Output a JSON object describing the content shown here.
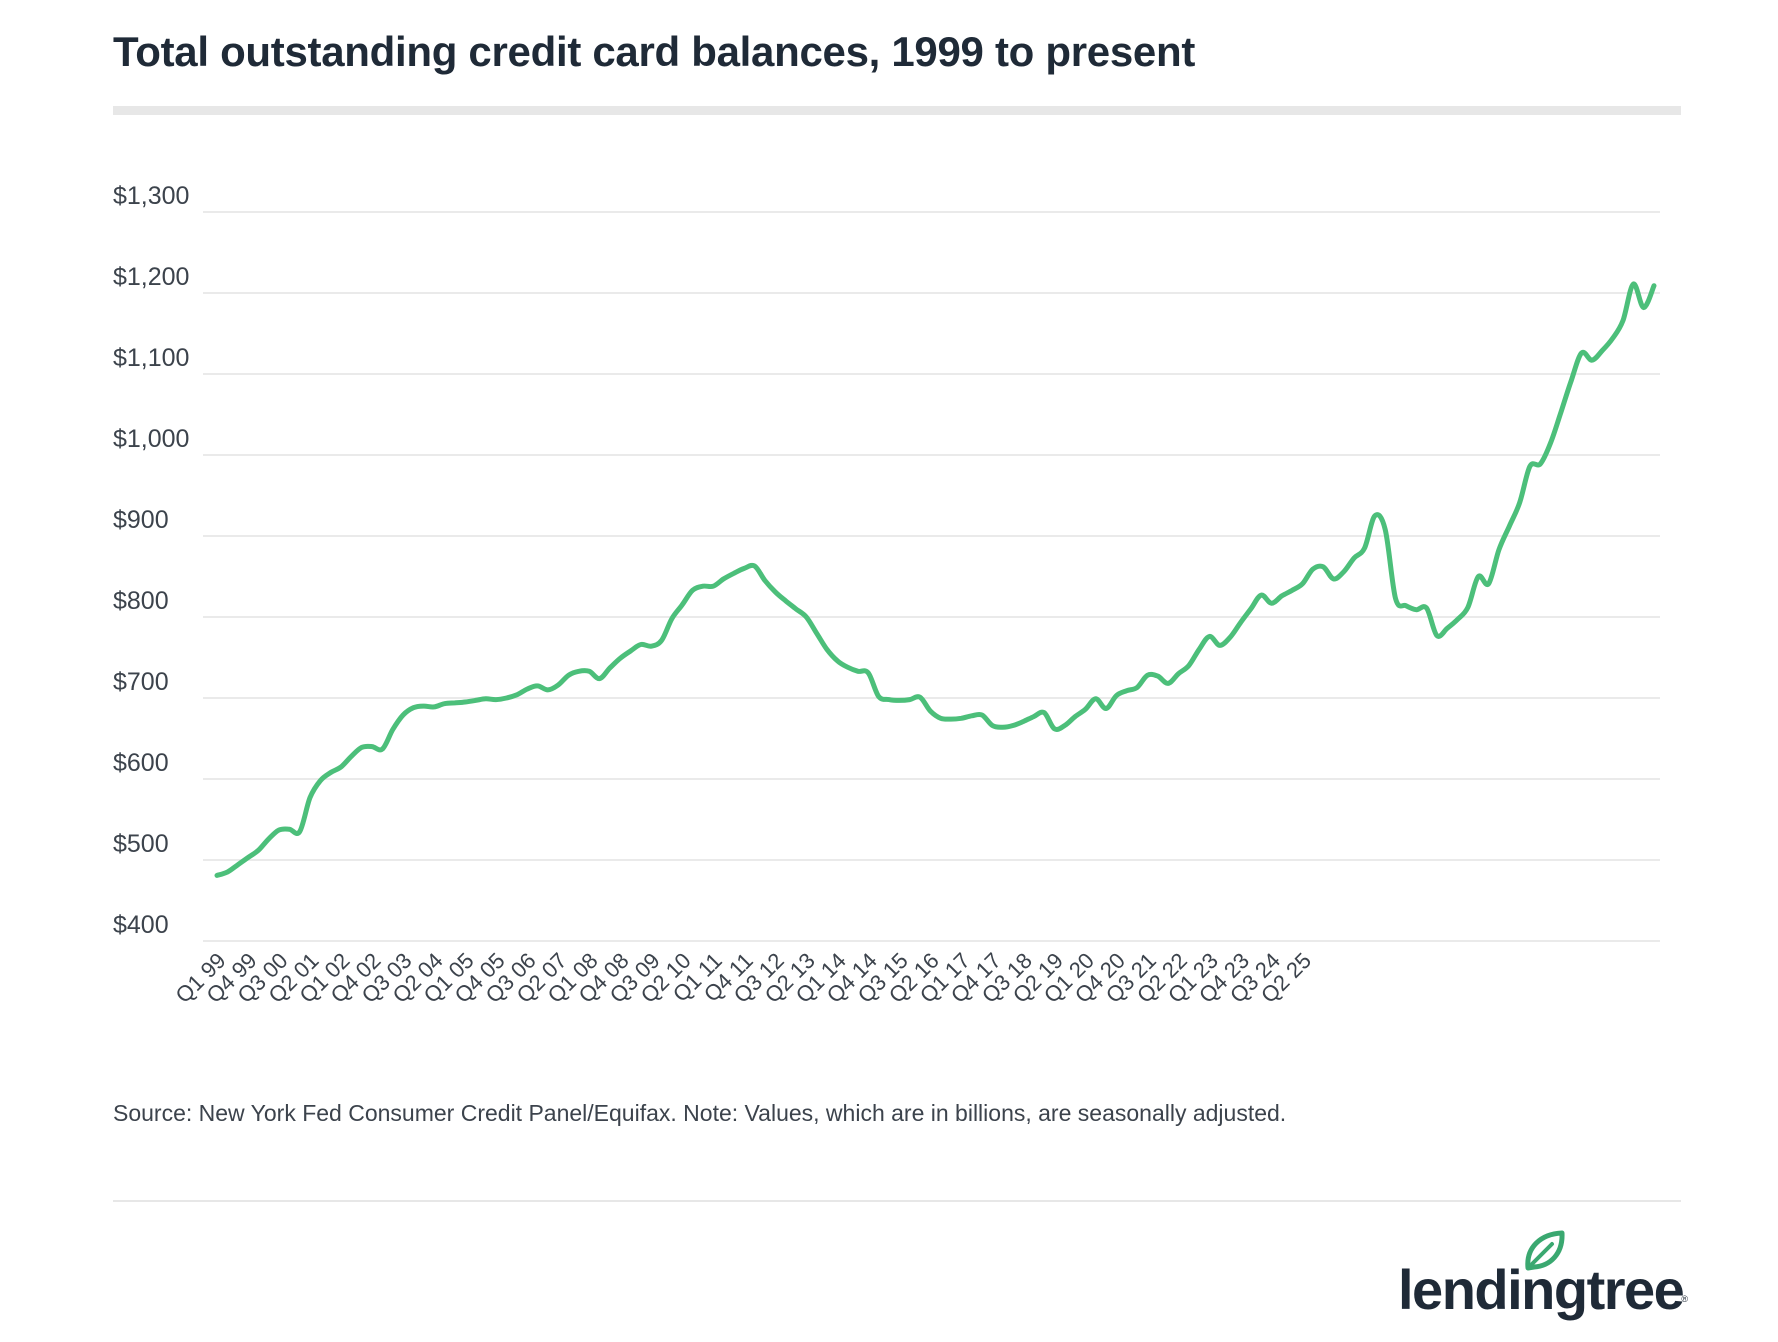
{
  "title": "Total outstanding credit card balances, 1999 to present",
  "source": "Source: New York Fed Consumer Credit Panel/Equifax. Note: Values, which are in billions, are seasonally adjusted.",
  "brand": {
    "name": "lendingtree",
    "registered": "®",
    "color": "#1f2a37",
    "leaf_color": "#3aa870"
  },
  "chart_data": {
    "type": "line",
    "title": "Total outstanding credit card balances, 1999 to present",
    "xlabel": "",
    "ylabel": "",
    "ylim": [
      400,
      1300
    ],
    "grid": true,
    "y_ticks": [
      {
        "value": 1300,
        "label": "$1,300"
      },
      {
        "value": 1200,
        "label": "$1,200"
      },
      {
        "value": 1100,
        "label": "$1,100"
      },
      {
        "value": 1000,
        "label": "$1,000"
      },
      {
        "value": 900,
        "label": "$900"
      },
      {
        "value": 800,
        "label": "$800"
      },
      {
        "value": 700,
        "label": "$700"
      },
      {
        "value": 600,
        "label": "$600"
      },
      {
        "value": 500,
        "label": "$500"
      },
      {
        "value": 400,
        "label": "$400"
      }
    ],
    "x_tick_labels": [
      "Q1 99",
      "Q4 99",
      "Q3 00",
      "Q2 01",
      "Q1 02",
      "Q4 02",
      "Q3 03",
      "Q2 04",
      "Q1 05",
      "Q4 05",
      "Q3 06",
      "Q2 07",
      "Q1 08",
      "Q4 08",
      "Q3 09",
      "Q2 10",
      "Q1 11",
      "Q4 11",
      "Q3 12",
      "Q2 13",
      "Q1 14",
      "Q4 14",
      "Q3 15",
      "Q2 16",
      "Q1 17",
      "Q4 17",
      "Q3 18",
      "Q2 19",
      "Q1 20",
      "Q4 20",
      "Q3 21",
      "Q2 22",
      "Q1 23",
      "Q4 23",
      "Q3 24",
      "Q2 25"
    ],
    "line_color": "#4cbf7a",
    "series": [
      {
        "values": [
          481,
          485,
          494,
          503,
          512,
          526,
          537,
          538,
          535,
          577,
          598,
          608,
          615,
          628,
          639,
          640,
          637,
          661,
          679,
          688,
          690,
          689,
          693,
          694,
          695,
          697,
          699,
          698,
          700,
          704,
          711,
          715,
          710,
          716,
          728,
          733,
          733,
          724,
          737,
          749,
          758,
          766,
          764,
          771,
          798,
          815,
          833,
          838,
          838,
          847,
          854,
          860,
          863,
          845,
          831,
          820,
          810,
          800,
          780,
          760,
          746,
          738,
          733,
          731,
          702,
          698,
          697,
          698,
          701,
          684,
          675,
          674,
          675,
          678,
          679,
          666,
          664,
          666,
          671,
          677,
          682,
          662,
          666,
          677,
          686,
          699,
          687,
          703,
          709,
          713,
          728,
          727,
          718,
          730,
          740,
          760,
          776,
          765,
          775,
          793,
          810,
          827,
          817,
          826,
          833,
          841,
          859,
          862,
          847,
          856,
          873,
          885,
          925,
          908,
          823,
          814,
          809,
          811,
          777,
          786,
          797,
          812,
          850,
          841,
          883,
          912,
          941,
          986,
          989,
          1015,
          1053,
          1092,
          1126,
          1117,
          1129,
          1144,
          1166,
          1211,
          1182,
          1209
        ]
      }
    ]
  }
}
